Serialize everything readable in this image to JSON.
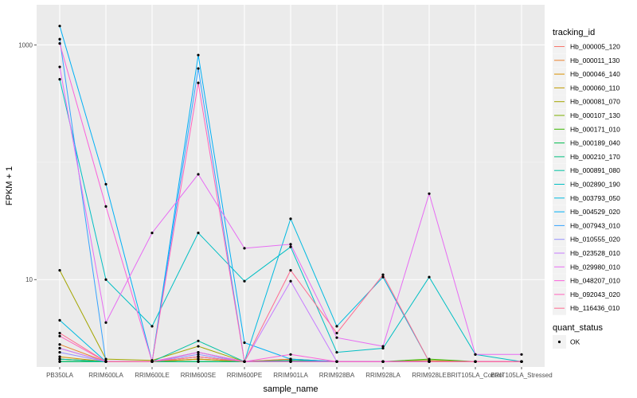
{
  "chart_data": {
    "type": "line",
    "xlabel": "sample_name",
    "ylabel": "FPKM + 1",
    "y_scale": "log10",
    "ylim": [
      1.8,
      2200
    ],
    "yticks": [
      10,
      1000
    ],
    "ytick_labels": [
      "10",
      "1000"
    ],
    "grid": true,
    "legend_placement": "right",
    "categories": [
      "PB350LA",
      "RRIM600LA",
      "RRIM600LE",
      "RRIM600SE",
      "RRIM600PE",
      "RRIM901LA",
      "RRIM928BA",
      "RRIM928LA",
      "RRIM928LE",
      "BRIT105LA_Control",
      "BRIT105LA_Stressed"
    ],
    "legend": {
      "color_title": "tracking_id",
      "shape_title": "quant_status",
      "shape_entries": [
        "OK"
      ]
    },
    "series": [
      {
        "name": "Hb_000005_120",
        "color": "#F8766D",
        "values": [
          2.6,
          2,
          2,
          2.1,
          2,
          2.1,
          2,
          2,
          2,
          2,
          2
        ]
      },
      {
        "name": "Hb_000011_130",
        "color": "#EA8331",
        "values": [
          2.8,
          2,
          2,
          2.1,
          2,
          2.1,
          2,
          2,
          2,
          2,
          2
        ]
      },
      {
        "name": "Hb_000046_140",
        "color": "#D89000",
        "values": [
          2.2,
          2,
          2,
          2.2,
          2,
          2,
          2,
          2,
          2,
          2,
          2
        ]
      },
      {
        "name": "Hb_000060_110",
        "color": "#C09B00",
        "values": [
          2.1,
          2,
          2,
          2.1,
          2,
          2,
          2,
          2,
          2,
          2,
          2
        ]
      },
      {
        "name": "Hb_000081_070",
        "color": "#A3A500",
        "values": [
          12,
          2.1,
          2.05,
          2.7,
          2,
          2.05,
          2,
          2,
          2.05,
          2,
          2
        ]
      },
      {
        "name": "Hb_000107_130",
        "color": "#7CAE00",
        "values": [
          2.1,
          2,
          2,
          2.2,
          2,
          2,
          2,
          2,
          2,
          2,
          2
        ]
      },
      {
        "name": "Hb_000171_010",
        "color": "#39B600",
        "values": [
          2,
          2,
          2,
          2,
          2,
          2,
          2,
          2,
          2.1,
          2,
          2
        ]
      },
      {
        "name": "Hb_000189_040",
        "color": "#00BB4E",
        "values": [
          2,
          2,
          2,
          2,
          2,
          2,
          2,
          2,
          2,
          2,
          2
        ]
      },
      {
        "name": "Hb_000210_170",
        "color": "#00BF7D",
        "values": [
          2,
          2,
          2,
          2,
          2,
          2.05,
          2,
          2,
          2,
          2,
          2
        ]
      },
      {
        "name": "Hb_000891_080",
        "color": "#00C1A3",
        "values": [
          2.1,
          2,
          2,
          3,
          2,
          2,
          2,
          2,
          2,
          2,
          2
        ]
      },
      {
        "name": "Hb_002890_190",
        "color": "#00BFC4",
        "values": [
          510,
          10,
          4,
          25,
          9.7,
          19,
          2.4,
          2.6,
          10.5,
          2.3,
          2
        ]
      },
      {
        "name": "Hb_003793_050",
        "color": "#00BAE0",
        "values": [
          4.5,
          2,
          2,
          2.4,
          2,
          33,
          4,
          10.5,
          2,
          2,
          2
        ]
      },
      {
        "name": "Hb_004529_020",
        "color": "#00B0F6",
        "values": [
          1450,
          65,
          2,
          820,
          2.9,
          2.1,
          2,
          2,
          2,
          2,
          2
        ]
      },
      {
        "name": "Hb_007943_010",
        "color": "#35A2FF",
        "values": [
          1120,
          2,
          2,
          630,
          2,
          2,
          2,
          2,
          2,
          2,
          2
        ]
      },
      {
        "name": "Hb_010555_020",
        "color": "#9590FF",
        "values": [
          2.4,
          2,
          2,
          2.3,
          2,
          2,
          2,
          2,
          2,
          2,
          2
        ]
      },
      {
        "name": "Hb_023528_010",
        "color": "#C77CFF",
        "values": [
          2.6,
          2,
          2,
          2.2,
          2,
          9.7,
          2,
          2,
          2,
          2,
          2
        ]
      },
      {
        "name": "Hb_029980_010",
        "color": "#E76BF3",
        "values": [
          650,
          4.3,
          25,
          79,
          18.5,
          20,
          3.2,
          2.7,
          54,
          2.3,
          2.3
        ]
      },
      {
        "name": "Hb_048207_010",
        "color": "#FA62DB",
        "values": [
          1030,
          42,
          2,
          2.4,
          2,
          2.3,
          2,
          2,
          2,
          2,
          2
        ]
      },
      {
        "name": "Hb_092043_020",
        "color": "#FF62BC",
        "values": [
          3.3,
          2,
          2,
          475,
          2,
          2,
          2,
          2,
          2,
          2,
          2
        ]
      },
      {
        "name": "Hb_116436_010",
        "color": "#FF6C91",
        "values": [
          3.5,
          2,
          2,
          2.2,
          2,
          12,
          3.5,
          11,
          2,
          2,
          2
        ]
      }
    ]
  }
}
